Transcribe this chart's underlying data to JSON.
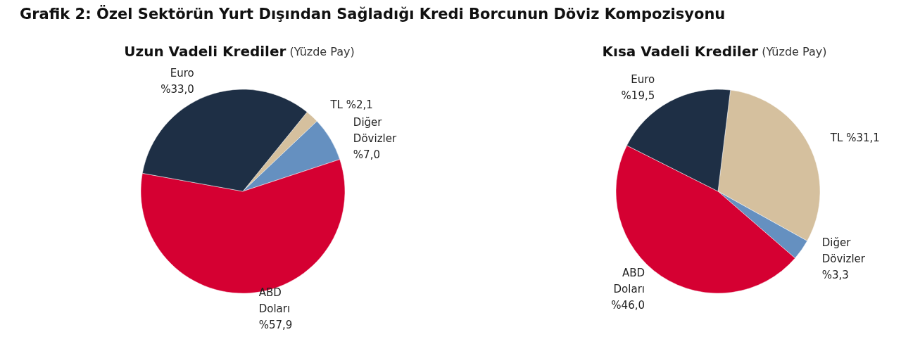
{
  "chart_data": [
    {
      "type": "pie",
      "title": "Grafik 2: Özel Sektörün Yurt Dışından Sağladığı Kredi Borcunun Döviz Kompozisyonu",
      "subtitle": "Uzun Vadeli Krediler (Yüzde Pay)",
      "categories": [
        "TL",
        "Diğer Dövizler",
        "ABD Doları",
        "Euro"
      ],
      "values": [
        2.1,
        7.0,
        57.9,
        33.0
      ],
      "value_labels": [
        "%2,1",
        "%7,0",
        "%57,9",
        "%33,0"
      ],
      "colors": [
        "#d5c09e",
        "#6590c0",
        "#d50032",
        "#1e2f45"
      ],
      "legend": false
    },
    {
      "type": "pie",
      "subtitle": "Kısa Vadeli Krediler (Yüzde Pay)",
      "categories": [
        "TL",
        "Diğer Dövizler",
        "ABD Doları",
        "Euro"
      ],
      "values": [
        31.1,
        3.3,
        46.0,
        19.5
      ],
      "value_labels": [
        "%31,1",
        "%3,3",
        "%46,0",
        "%19,5"
      ],
      "colors": [
        "#d5c09e",
        "#6590c0",
        "#d50032",
        "#1e2f45"
      ],
      "legend": false
    }
  ]
}
